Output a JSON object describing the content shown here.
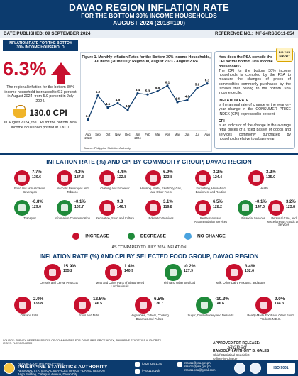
{
  "header": {
    "title": "DAVAO REGION INFLATION RATE",
    "subtitle1": "FOR THE BOTTOM 30% INCOME HOUSEHOLDS",
    "subtitle2": "AUGUST 2024 (2018=100)"
  },
  "meta": {
    "date": "DATE PUBLISHED: 09 SEPTEMBER 2024",
    "ref": "REFERENCE NO.: INF-24RSSO11-054"
  },
  "left": {
    "band": "INFLATION RATE FOR THE BOTTOM 30% INCOME HOUSEHOLD",
    "rate": "6.3%",
    "rate_text": "The regional inflation for the bottom 30% income household increased to 6.3 percent in August 2024, from 5.9 percent in July 2024.",
    "cpi": "130.0 CPI",
    "cpi_text": "In August 2024, the CPI for the bottom 30% income household posted at 130.0."
  },
  "chart_data": {
    "type": "line",
    "title": "Figure 1. Monthly Inflation Rates for the Bottom 30% Income Households, All Items (2018=100): Region XI, August 2023 - August 2024",
    "categories": [
      "Aug 2023",
      "Sep",
      "Oct",
      "Nov",
      "Dec",
      "Jan 2024",
      "Feb",
      "Mar",
      "Apr",
      "May",
      "Jun",
      "Jul",
      "Aug"
    ],
    "values": [
      3.0,
      5.2,
      4.1,
      4.5,
      3.9,
      5.4,
      5.3,
      5.6,
      6.1,
      4.6,
      4.8,
      5.9,
      6.3
    ],
    "ylim": [
      2,
      7
    ],
    "color": "#0c3b6e",
    "source": "Source: Philippine Statistics Authority"
  },
  "right": {
    "badge": "DID YOU KNOW?",
    "q": "How does the PSA compile the CPI for the bottom 30% income households?",
    "a": "The CPI for the bottom 30% income households is compiled by the PSA to measure the changes of prices of commodities commonly purchased by the families that belong to the bottom 30% income decile.",
    "h1": "INFLATION RATE",
    "p1": "is the annual rate of change or the year-on-year change in the CONSUMER PRICE INDEX (CPI) expressed in percent.",
    "h2": "CPI",
    "p2": "is an indicator of the change in the average retail prices of a fixed basket of goods and services commonly purchased by households relative to a base year."
  },
  "commodity": {
    "title": "INFLATION RATE (%) AND CPI BY COMMODITY GROUP, DAVAO REGION",
    "items": [
      {
        "rate": "7.7%",
        "cpi": "130.6",
        "label": "Food and Non-Alcoholic Beverages",
        "status": "up",
        "icon": "food-icon"
      },
      {
        "rate": "4.2%",
        "cpi": "187.3",
        "label": "Alcoholic Beverages and Tobacco",
        "status": "up",
        "icon": "bottle-icon"
      },
      {
        "rate": "4.4%",
        "cpi": "122.8",
        "label": "Clothing and Footwear",
        "status": "up",
        "icon": "shirt-icon"
      },
      {
        "rate": "6.9%",
        "cpi": "123.8",
        "label": "Housing, Water, Electricity, Gas, and Other Fuels",
        "status": "up",
        "icon": "house-icon"
      },
      {
        "rate": "3.2%",
        "cpi": "124.4",
        "label": "Furnishing, Household Equipment and Routine",
        "status": "up",
        "icon": "sofa-icon"
      },
      {
        "rate": "3.2%",
        "cpi": "135.0",
        "label": "Health",
        "status": "up",
        "icon": "health-icon"
      },
      {
        "rate": "-0.8%",
        "cpi": "129.0",
        "label": "Transport",
        "status": "dn",
        "icon": "car-icon"
      },
      {
        "rate": "-0.1%",
        "cpi": "102.7",
        "label": "Information Communication",
        "status": "dn",
        "icon": "phone-icon"
      },
      {
        "rate": "9.3",
        "cpi": "146.7",
        "label": "Recreation, Sport and Culture",
        "status": "up",
        "icon": "ball-icon"
      },
      {
        "rate": "3.1%",
        "cpi": "119.8",
        "label": "Education Services",
        "status": "up",
        "icon": "book-icon"
      },
      {
        "rate": "6.5%",
        "cpi": "128.2",
        "label": "Restaurants and Accommodation Services",
        "status": "up",
        "icon": "plate-icon"
      },
      {
        "rate": "-0.1%",
        "cpi": "147.0",
        "label": "Financial Services",
        "status": "dn",
        "icon": "coin-icon"
      },
      {
        "rate": "3.2%",
        "cpi": "123.8",
        "label": "Personal Care, and Miscellaneous Goods and Services",
        "status": "up",
        "icon": "care-icon"
      }
    ]
  },
  "legend": {
    "increase": "INCREASE",
    "decrease": "DECREASE",
    "nochange": "NO CHANGE",
    "note": "AS COMPARED TO JULY 2024 INFLATION",
    "colors": {
      "increase": "#c8102e",
      "decrease": "#1f8a3a",
      "nochange": "#4aa3df"
    }
  },
  "food": {
    "title": "INFLATION RATE (%) AND CPI BY SELECTED FOOD GROUP, DAVAO REGION",
    "items": [
      {
        "rate": "15.9%",
        "cpi": "135.2",
        "label": "Cereals and Cereal Products",
        "status": "up",
        "icon": "rice-icon"
      },
      {
        "rate": "1.4%",
        "cpi": "140.9",
        "label": "Meat and Other Parts of Slaughtered Land Animals",
        "status": "up",
        "icon": "meat-icon"
      },
      {
        "rate": "-0.2%",
        "cpi": "127.9",
        "label": "Fish and Other Seafood",
        "status": "dn",
        "icon": "fish-icon"
      },
      {
        "rate": "3.4%",
        "cpi": "132.6",
        "label": "Milk, Other Dairy Products, and Eggs",
        "status": "up",
        "icon": "milk-icon"
      },
      {
        "rate": "2.9%",
        "cpi": "133.8",
        "label": "Oils and Fats",
        "status": "up",
        "icon": "oil-icon"
      },
      {
        "rate": "12.5%",
        "cpi": "146.5",
        "label": "Fruits and Nuts",
        "status": "up",
        "icon": "fruit-icon"
      },
      {
        "rate": "6.5%",
        "cpi": "136.7",
        "label": "Vegetables, Tubers, Cooking Bananas and Pulses",
        "status": "up",
        "icon": "veg-icon"
      },
      {
        "rate": "-10.3%",
        "cpi": "146.6",
        "label": "Sugar, Confectionery and Desserts",
        "status": "dn",
        "icon": "sugar-icon"
      },
      {
        "rate": "9.0%",
        "cpi": "144.3",
        "label": "Ready-Made Food and Other Food Products N.E.C.",
        "status": "up",
        "icon": "ready-food-icon"
      }
    ]
  },
  "source": "SOURCE: SURVEY OF RETAIL PRICES OF COMMODITIES FOR CONSUMER PRICE INDEX, PHILIPPINE STATISTICS AUTHORITY ICONS: FLATICON.COM",
  "approval": {
    "title": "APPROVED FOR RELEASE:",
    "name": "RANDOLPH ANTHONY B. GALES",
    "pos1": "Chief Statistical Specialist",
    "pos2": "Officer-in-Charge",
    "pos3": "Regional Statistical Services Office 11",
    "sig": "signature"
  },
  "footer": {
    "republic": "REPUBLIC OF THE PHILIPPINES",
    "agency": "PHILIPPINE STATISTICS AUTHORITY",
    "office": "REGIONAL STATISTICAL SERVICES OFFICE - DAVAO REGION",
    "address": "Ango Building, Cabaguio Avenue, Davao City",
    "phone": "(082) 224-1140",
    "fb": "/PSA11govph",
    "email": "rsso11@psa.gov.ph",
    "email2": "rsso11@psa.gov.ph",
    "email3": "rsso11.psa@gmail.com",
    "iso": "ISO 9001"
  }
}
